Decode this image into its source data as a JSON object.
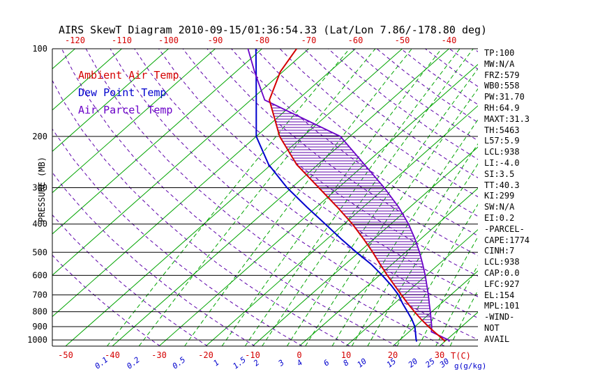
{
  "title": "AIRS SkewT Diagram 2010-09-15/01:36:54.33 (Lat/Lon 7.86/-178.80 deg)",
  "legend": [
    {
      "label": "Ambient Air Temp",
      "color": "#d40000"
    },
    {
      "label": "Dew Point Temp",
      "color": "#0000cd"
    },
    {
      "label": "Air Parcel Temp",
      "color": "#6a00c8"
    }
  ],
  "stats": [
    "TP:100",
    "MW:N/A",
    "FRZ:579",
    "WB0:558",
    "PW:31.70",
    "RH:64.9",
    "MAXT:31.3",
    "TH:5463",
    "L57:5.9",
    "LCL:938",
    "LI:-4.0",
    "SI:3.5",
    "TT:40.3",
    "KI:299",
    "SW:N/A",
    "EI:0.2",
    "-PARCEL-",
    "CAPE:1774",
    "CINH:7",
    "LCL:938",
    "CAP:0.0",
    "LFC:927",
    "EL:154",
    "MPL:101",
    "-WIND-",
    "NOT",
    "AVAIL"
  ],
  "colors": {
    "isotherm": "#00a400",
    "mixing_ratio_line": "#00a400",
    "dry_adiabat": "#5d00aa",
    "hatch": "#5d00aa",
    "grid": "#000000",
    "ambient": "#d40000",
    "dew_point": "#0000cd",
    "parcel": "#6a00c8",
    "tick_red": "#d40000",
    "tick_blue": "#0000cd"
  },
  "chart_data": {
    "type": "line",
    "variant": "skew-t-log-p",
    "pressure_label": "PRESSURE (MB)",
    "pressure_axis_range_mb": [
      100,
      1050
    ],
    "pressure_ticks_mb": [
      100,
      200,
      300,
      400,
      500,
      600,
      700,
      800,
      900,
      1000
    ],
    "top_temp_ticks_c": [
      -120,
      -110,
      -100,
      -90,
      -80,
      -70,
      -60,
      -50,
      -40
    ],
    "bottom_temp_ticks_c": [
      -50,
      -40,
      -30,
      -20,
      -10,
      0,
      10,
      20,
      30
    ],
    "temp_unit_label": "T(C)",
    "mixing_ratio_values_gkg": [
      0.1,
      0.2,
      0.5,
      1,
      1.5,
      2,
      3,
      4,
      6,
      8,
      10,
      15,
      20,
      25,
      30
    ],
    "mixing_ratio_unit_label": "g(g/kg)",
    "isotherms_c": {
      "min": -120,
      "max": 40,
      "step": 10
    },
    "dry_adiabats_theta_k": {
      "min": 240,
      "max": 460,
      "step": 10
    },
    "cape_hatch_between_mb": [
      927,
      154
    ],
    "series": [
      {
        "name": "Ambient Air Temp",
        "pressure_mb": [
          1013,
          1000,
          950,
          900,
          850,
          800,
          750,
          700,
          650,
          600,
          550,
          500,
          450,
          400,
          350,
          300,
          250,
          200,
          150,
          120,
          100
        ],
        "temp_c": [
          30.0,
          29.4,
          26.2,
          22.9,
          19.6,
          16.3,
          12.9,
          9.4,
          5.7,
          1.7,
          -2.5,
          -7.0,
          -12.2,
          -18.2,
          -25.5,
          -34.2,
          -44.5,
          -55.0,
          -66.0,
          -70.5,
          -72.6
        ]
      },
      {
        "name": "Dew Point Temp",
        "pressure_mb": [
          1013,
          1000,
          950,
          900,
          850,
          800,
          750,
          700,
          650,
          600,
          550,
          500,
          450,
          400,
          350,
          300,
          250,
          200,
          150,
          125,
          100
        ],
        "temp_c": [
          24.0,
          23.5,
          21.8,
          20.0,
          17.6,
          14.8,
          11.8,
          8.8,
          5.0,
          0.6,
          -4.4,
          -10.5,
          -17.0,
          -24.0,
          -32.0,
          -41.0,
          -50.5,
          -60.0,
          -68.8,
          -74.4,
          -81.3
        ]
      },
      {
        "name": "Air Parcel Temp",
        "pressure_mb": [
          1013,
          1000,
          938,
          900,
          850,
          800,
          750,
          700,
          650,
          600,
          550,
          500,
          450,
          400,
          350,
          300,
          250,
          200,
          150,
          120,
          100
        ],
        "temp_c": [
          31.0,
          30.4,
          24.8,
          23.6,
          21.7,
          19.7,
          17.5,
          15.2,
          12.6,
          9.8,
          6.6,
          3.0,
          -1.2,
          -6.2,
          -12.4,
          -20.2,
          -30.0,
          -42.0,
          -67.0,
          -76.0,
          -83.0
        ]
      }
    ]
  }
}
